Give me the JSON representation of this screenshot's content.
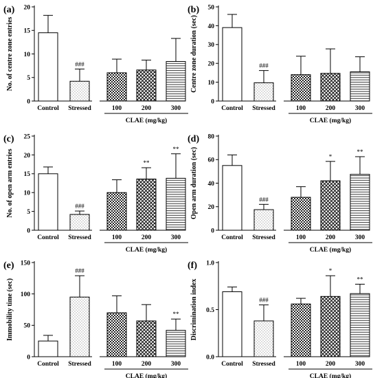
{
  "chart_data": [
    {
      "type": "bar",
      "panel": "(a)",
      "ylabel": "No. of centre zone entries",
      "ylim": [
        0,
        20
      ],
      "yticks": [
        0,
        5,
        10,
        15,
        20
      ],
      "categories": [
        "Control",
        "Stressed",
        "100",
        "200",
        "300"
      ],
      "values": [
        14.5,
        4.2,
        6.0,
        6.6,
        8.4
      ],
      "errors": [
        3.7,
        2.6,
        2.9,
        2.1,
        4.9
      ],
      "significance": [
        "",
        "###",
        "",
        "",
        ""
      ],
      "group_label": "CLAE (mg/kg)"
    },
    {
      "type": "bar",
      "panel": "(b)",
      "ylabel": "Centre zone duration (sec)",
      "ylim": [
        0,
        50
      ],
      "yticks": [
        0,
        10,
        20,
        30,
        40,
        50
      ],
      "categories": [
        "Control",
        "Stressed",
        "100",
        "200",
        "300"
      ],
      "values": [
        39,
        9.7,
        14,
        14.7,
        15.5
      ],
      "errors": [
        7,
        6.5,
        9.8,
        13,
        8
      ],
      "significance": [
        "",
        "###",
        "",
        "",
        ""
      ],
      "group_label": "CLAE (mg/kg)"
    },
    {
      "type": "bar",
      "panel": "(c)",
      "ylabel": "No. of open arm entries",
      "ylim": [
        0,
        25
      ],
      "yticks": [
        0,
        5,
        10,
        15,
        20,
        25
      ],
      "categories": [
        "Control",
        "Stressed",
        "100",
        "200",
        "300"
      ],
      "values": [
        15,
        4.2,
        10,
        13.6,
        13.8
      ],
      "errors": [
        1.8,
        0.9,
        3.4,
        3.0,
        6.5
      ],
      "significance": [
        "",
        "###",
        "",
        "**",
        "**"
      ],
      "group_label": "CLAE (mg/kg)"
    },
    {
      "type": "bar",
      "panel": "(d)",
      "ylabel": "Open arm duration (sec)",
      "ylim": [
        0,
        80
      ],
      "yticks": [
        0,
        20,
        40,
        60,
        80
      ],
      "categories": [
        "Control",
        "Stressed",
        "100",
        "200",
        "300"
      ],
      "values": [
        55,
        17.5,
        28,
        42,
        47.5
      ],
      "errors": [
        9,
        4.5,
        9,
        16.5,
        15
      ],
      "significance": [
        "",
        "###",
        "",
        "*",
        "**"
      ],
      "group_label": "CLAE (mg/kg)"
    },
    {
      "type": "bar",
      "panel": "(e)",
      "ylabel": "Immobility time (sec)",
      "ylim": [
        0,
        150
      ],
      "yticks": [
        0,
        50,
        100,
        150
      ],
      "categories": [
        "Control",
        "Stressed",
        "100",
        "200",
        "300"
      ],
      "values": [
        25,
        95,
        70,
        57,
        42
      ],
      "errors": [
        9,
        34,
        27,
        26,
        18
      ],
      "significance": [
        "",
        "###",
        "",
        "",
        "**"
      ],
      "group_label": "CLAE (mg/kg)"
    },
    {
      "type": "bar",
      "panel": "(f)",
      "ylabel": "Discrimination index",
      "ylim": [
        0,
        1
      ],
      "yticks": [
        0,
        0.5,
        1
      ],
      "ytick_labels": [
        "0.0",
        "0.5",
        "1.0"
      ],
      "categories": [
        "Control",
        "Stressed",
        "100",
        "200",
        "300"
      ],
      "values": [
        0.69,
        0.38,
        0.56,
        0.64,
        0.67
      ],
      "errors": [
        0.05,
        0.17,
        0.06,
        0.22,
        0.1
      ],
      "significance": [
        "",
        "###",
        "",
        "*",
        "**"
      ],
      "group_label": "CLAE (mg/kg)"
    }
  ],
  "pattern_names": [
    "none",
    "dots",
    "checker",
    "crosshatch",
    "stripes"
  ]
}
